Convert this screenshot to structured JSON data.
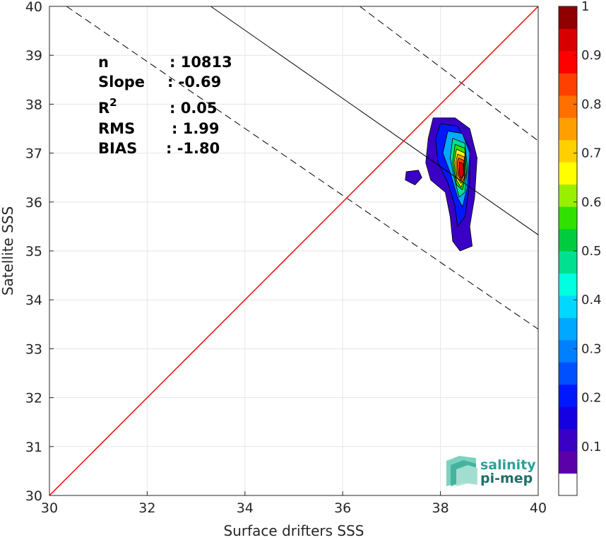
{
  "chart_data": {
    "type": "heatmap",
    "xlabel": "Surface drifters SSS",
    "ylabel": "Satellite SSS",
    "xlim": [
      30,
      40
    ],
    "ylim": [
      30,
      40
    ],
    "xticks": [
      "30",
      "32",
      "34",
      "36",
      "38",
      "40"
    ],
    "yticks": [
      "30",
      "31",
      "32",
      "33",
      "34",
      "35",
      "36",
      "37",
      "38",
      "39",
      "40"
    ],
    "grid": true,
    "identity_line": {
      "from": [
        30,
        30
      ],
      "to": [
        40,
        40
      ],
      "color": "#ff0000"
    },
    "regression_line": {
      "from": [
        33.3,
        40
      ],
      "to": [
        40,
        35.33
      ],
      "color": "#000000"
    },
    "confidence_lines": [
      {
        "from": [
          30.35,
          40
        ],
        "to": [
          40,
          33.4
        ]
      },
      {
        "from": [
          36.35,
          40
        ],
        "to": [
          40,
          37.25
        ]
      }
    ],
    "stats": [
      {
        "label": "n",
        "value": ": 10813"
      },
      {
        "label": "Slope",
        "value": ": -0.69"
      },
      {
        "label": "R",
        "sup": "2",
        "value": ": 0.05"
      },
      {
        "label": "RMS",
        "value": ": 1.99"
      },
      {
        "label": "BIAS",
        "value": ": -1.80"
      }
    ],
    "colorbar": {
      "ticks": [
        "0.1",
        "0.2",
        "0.3",
        "0.4",
        "0.5",
        "0.6",
        "0.7",
        "0.8",
        "0.9",
        "1"
      ],
      "range": [
        0,
        1
      ],
      "colors": [
        "#ffffff",
        "#5c00a8",
        "#3a00c4",
        "#1400e0",
        "#0018ff",
        "#0050ff",
        "#0080ff",
        "#00a8ff",
        "#00d8ff",
        "#00ffe0",
        "#00e090",
        "#00cc40",
        "#30e000",
        "#98f000",
        "#ffff00",
        "#ffd000",
        "#ffa000",
        "#ff7000",
        "#ff4000",
        "#ff0000",
        "#d80000",
        "#900000"
      ]
    },
    "density_contours": [
      {
        "level": 0.05,
        "points": [
          [
            37.85,
            37.72
          ],
          [
            38.3,
            37.72
          ],
          [
            38.6,
            37.5
          ],
          [
            38.75,
            36.9
          ],
          [
            38.7,
            36.1
          ],
          [
            38.6,
            35.5
          ],
          [
            38.65,
            35.1
          ],
          [
            38.4,
            35.0
          ],
          [
            38.25,
            35.2
          ],
          [
            38.2,
            35.7
          ],
          [
            38.1,
            36.2
          ],
          [
            37.8,
            36.45
          ],
          [
            37.7,
            36.8
          ],
          [
            37.75,
            37.3
          ]
        ]
      },
      {
        "level": 0.05,
        "points": [
          [
            37.3,
            36.62
          ],
          [
            37.55,
            36.65
          ],
          [
            37.62,
            36.5
          ],
          [
            37.48,
            36.35
          ],
          [
            37.28,
            36.45
          ]
        ]
      },
      {
        "level": 0.15,
        "points": [
          [
            38.0,
            37.6
          ],
          [
            38.35,
            37.55
          ],
          [
            38.6,
            37.1
          ],
          [
            38.6,
            36.4
          ],
          [
            38.5,
            35.7
          ],
          [
            38.35,
            35.5
          ],
          [
            38.3,
            35.9
          ],
          [
            38.15,
            36.4
          ],
          [
            37.95,
            36.8
          ],
          [
            37.9,
            37.3
          ]
        ]
      },
      {
        "level": 0.3,
        "points": [
          [
            38.15,
            37.45
          ],
          [
            38.45,
            37.4
          ],
          [
            38.6,
            37.0
          ],
          [
            38.55,
            36.3
          ],
          [
            38.45,
            35.9
          ],
          [
            38.35,
            36.1
          ],
          [
            38.2,
            36.6
          ],
          [
            38.05,
            37.0
          ]
        ]
      },
      {
        "level": 0.45,
        "points": [
          [
            38.25,
            37.3
          ],
          [
            38.5,
            37.2
          ],
          [
            38.55,
            36.7
          ],
          [
            38.5,
            36.2
          ],
          [
            38.38,
            36.1
          ],
          [
            38.28,
            36.5
          ],
          [
            38.2,
            36.9
          ]
        ]
      },
      {
        "level": 0.55,
        "points": [
          [
            38.3,
            37.18
          ],
          [
            38.5,
            37.1
          ],
          [
            38.53,
            36.6
          ],
          [
            38.45,
            36.25
          ],
          [
            38.33,
            36.35
          ],
          [
            38.25,
            36.8
          ]
        ]
      },
      {
        "level": 0.65,
        "points": [
          [
            38.33,
            37.08
          ],
          [
            38.5,
            37.0
          ],
          [
            38.5,
            36.5
          ],
          [
            38.42,
            36.3
          ],
          [
            38.33,
            36.45
          ],
          [
            38.28,
            36.8
          ]
        ]
      },
      {
        "level": 0.75,
        "points": [
          [
            38.35,
            36.98
          ],
          [
            38.49,
            36.92
          ],
          [
            38.49,
            36.5
          ],
          [
            38.42,
            36.38
          ],
          [
            38.34,
            36.5
          ],
          [
            38.31,
            36.8
          ]
        ]
      },
      {
        "level": 0.85,
        "points": [
          [
            38.37,
            36.9
          ],
          [
            38.48,
            36.85
          ],
          [
            38.48,
            36.55
          ],
          [
            38.42,
            36.43
          ],
          [
            38.36,
            36.55
          ],
          [
            38.34,
            36.8
          ]
        ]
      },
      {
        "level": 0.95,
        "points": [
          [
            38.39,
            36.82
          ],
          [
            38.47,
            36.78
          ],
          [
            38.47,
            36.55
          ],
          [
            38.42,
            36.48
          ],
          [
            38.38,
            36.58
          ]
        ]
      }
    ]
  },
  "logo": {
    "line1": "salinity",
    "line2": "pi-mep"
  }
}
